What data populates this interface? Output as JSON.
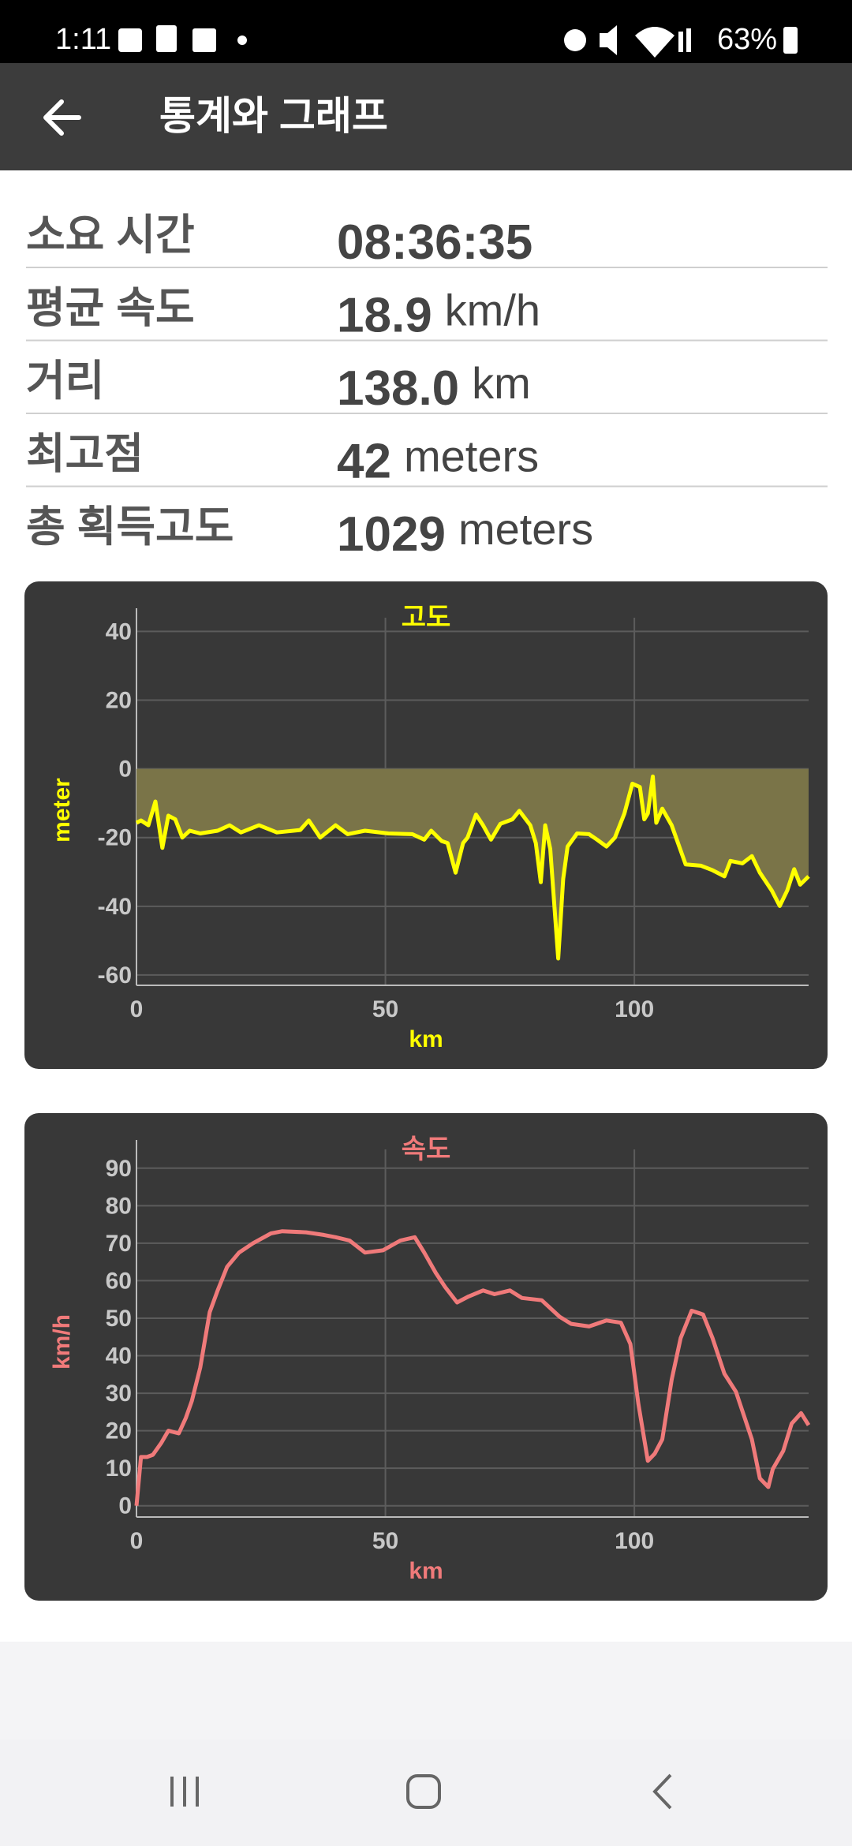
{
  "status_bar": {
    "time": "1:11",
    "battery": "63%"
  },
  "app_bar": {
    "title": "통계와 그래프"
  },
  "stats": [
    {
      "label": "소요 시간",
      "value": "08:36:35"
    },
    {
      "label": "평균 속도",
      "value": "18.9",
      "unit": "km/h"
    },
    {
      "label": "거리",
      "value": "138.0",
      "unit": "km"
    },
    {
      "label": "최고점",
      "value": "42",
      "unit": "meters"
    },
    {
      "label": "총 획득고도",
      "value": "1029",
      "unit": "meters"
    }
  ],
  "chart_data": [
    {
      "type": "area",
      "title": "고도",
      "xlabel": "km",
      "ylabel": "meter",
      "color": "#ffff00",
      "fill_color": "#7a7448",
      "grid": true,
      "xlim": [
        0,
        135
      ],
      "xticks": [
        0,
        50,
        100
      ],
      "ylim": [
        -63,
        44
      ],
      "yticks": [
        40,
        20,
        0,
        -20,
        -40,
        -60
      ],
      "x": [
        0,
        0.9,
        2.4,
        3.8,
        5.2,
        6.4,
        7.8,
        9.2,
        10.7,
        12.8,
        16.3,
        18.7,
        21,
        24.6,
        28.2,
        32.9,
        34.6,
        36.9,
        40,
        42.4,
        45.9,
        50.6,
        55.4,
        57.8,
        59.2,
        61.3,
        62.5,
        64.1,
        65.6,
        66.5,
        68.2,
        69.6,
        71.2,
        73.1,
        75.5,
        76.9,
        79.1,
        80.2,
        81.2,
        82.1,
        83.1,
        83.8,
        84.7,
        85.7,
        86.6,
        88.5,
        90.9,
        92.5,
        94.4,
        96.1,
        98,
        99.6,
        101.1,
        102,
        102.7,
        103.7,
        104.4,
        105.6,
        107.5,
        110.3,
        113.4,
        115.7,
        118.1,
        119.3,
        121.7,
        123.6,
        125.2,
        127.6,
        129.2,
        130.7,
        132.1,
        133.3,
        135
      ],
      "values": [
        -15.7,
        -15,
        -16.4,
        -9.5,
        -23,
        -13.6,
        -14.7,
        -20,
        -18,
        -18.8,
        -18,
        -16.4,
        -18.5,
        -16.4,
        -18.5,
        -17.8,
        -15,
        -20,
        -16.4,
        -19,
        -18,
        -18.8,
        -19,
        -20.6,
        -18,
        -21,
        -21.6,
        -30.2,
        -21.6,
        -20,
        -13.3,
        -16.4,
        -20.6,
        -16,
        -14.7,
        -12.2,
        -16.4,
        -21.6,
        -33,
        -16.4,
        -23.3,
        -37.2,
        -55.2,
        -32,
        -22.6,
        -18.8,
        -19,
        -20.6,
        -22.6,
        -20,
        -13,
        -4.3,
        -5.3,
        -14.7,
        -13,
        -2.2,
        -15.7,
        -11.6,
        -16.4,
        -27.8,
        -28.2,
        -29.5,
        -31.3,
        -26.8,
        -27.5,
        -25.4,
        -30.2,
        -35.4,
        -39.9,
        -35.4,
        -29.2,
        -33.7,
        -31.3
      ]
    },
    {
      "type": "line",
      "title": "속도",
      "xlabel": "km",
      "ylabel": "km/h",
      "color": "#f07a7a",
      "grid": true,
      "xlim": [
        0,
        135
      ],
      "xticks": [
        0,
        50,
        100
      ],
      "ylim": [
        -3,
        95
      ],
      "yticks": [
        90,
        80,
        70,
        60,
        50,
        40,
        30,
        20,
        10,
        0
      ],
      "x": [
        0,
        0.9,
        2.1,
        3.3,
        5,
        6.4,
        8.5,
        9.9,
        11.1,
        12.8,
        14.7,
        16.3,
        18.2,
        20.6,
        23.4,
        27,
        29.3,
        34.1,
        37.6,
        40,
        42.8,
        45.9,
        49.5,
        53,
        55.9,
        57.8,
        60.1,
        62,
        64.4,
        66.7,
        69.6,
        71.9,
        75,
        77.4,
        81.4,
        85,
        87.3,
        90.9,
        94.4,
        97.3,
        99.2,
        100.8,
        102.7,
        104.1,
        105.6,
        107.5,
        109.3,
        111.5,
        113.8,
        115.7,
        118.1,
        120.4,
        123.6,
        125.2,
        126.9,
        127.8,
        129.9,
        131.6,
        133.5,
        135
      ],
      "values": [
        0,
        13,
        13,
        13.6,
        16.8,
        20,
        19.3,
        23.4,
        27.9,
        36.8,
        51.6,
        57.4,
        63.7,
        67.5,
        70,
        72.6,
        73.2,
        72.9,
        72.2,
        71.6,
        70.7,
        67.5,
        68.1,
        70.7,
        71.6,
        67.5,
        62.1,
        58.3,
        54.2,
        55.8,
        57.4,
        56.4,
        57.4,
        55.4,
        54.8,
        50.4,
        48.5,
        47.8,
        49.4,
        48.8,
        43.1,
        27.2,
        12,
        13.9,
        17.7,
        33.6,
        44.7,
        52,
        51,
        44.7,
        35.2,
        30.4,
        17.7,
        7.3,
        5,
        9.8,
        14.6,
        21.9,
        24.7,
        21.5
      ]
    }
  ]
}
